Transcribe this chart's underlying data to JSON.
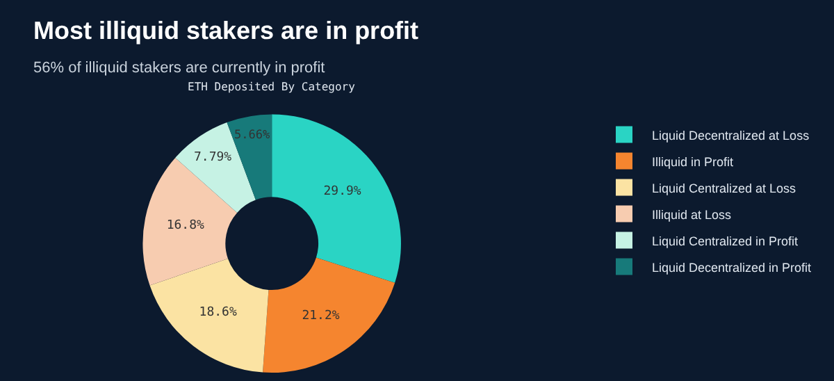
{
  "chart_data": {
    "type": "donut",
    "title": "Most illiquid stakers are in profit",
    "subtitle": "56% of illiquid stakers are currently in profit",
    "annotations": [
      "ETH Deposited By Category"
    ],
    "categories": [
      "Liquid Decentralized at Loss",
      "Illiquid in Profit",
      "Liquid Centralized at Loss",
      "Illiquid at Loss",
      "Liquid Centralized in Profit",
      "Liquid Decentralized in Profit"
    ],
    "values": [
      29.9,
      21.2,
      18.6,
      16.8,
      7.79,
      5.66
    ],
    "colors": [
      "#2ad4c4",
      "#f5852f",
      "#fbe3a3",
      "#f7ccb0",
      "#c6f2e4",
      "#177a7a"
    ],
    "value_labels": [
      "29.9%",
      "21.2%",
      "18.6%",
      "16.8%",
      "7.79%",
      "5.66%"
    ],
    "legend": "top right"
  }
}
